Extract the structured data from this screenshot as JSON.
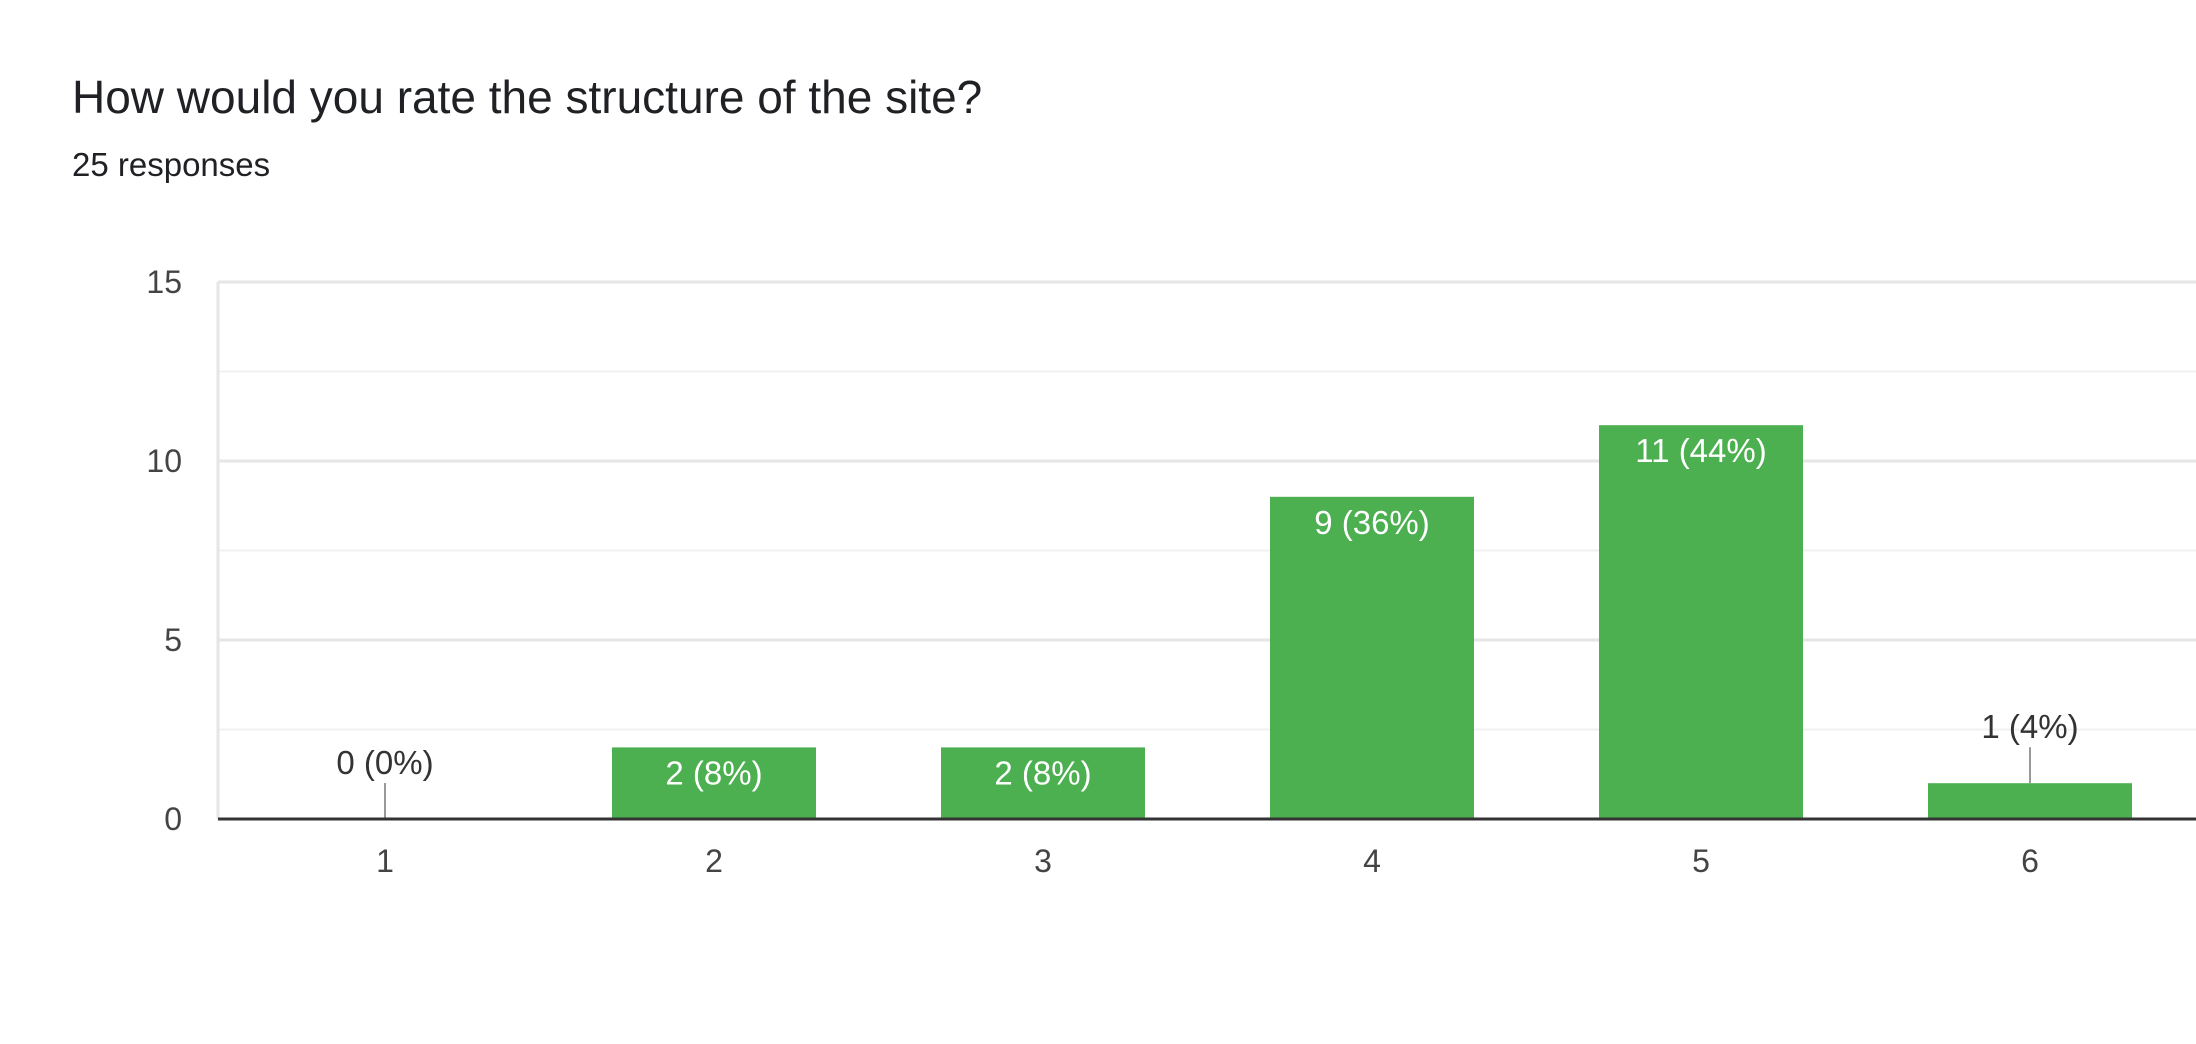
{
  "title": "How would you rate the structure of the site?",
  "subtitle": "25 responses",
  "colors": {
    "bar": "#4caf50",
    "grid": "#e6e6e6",
    "axis": "#333333",
    "inside_label": "#ffffff",
    "outside_label": "#333333"
  },
  "chart_data": {
    "type": "bar",
    "categories": [
      "1",
      "2",
      "3",
      "4",
      "5",
      "6"
    ],
    "values": [
      0,
      2,
      2,
      9,
      11,
      1
    ],
    "labels": [
      "0 (0%)",
      "2 (8%)",
      "2 (8%)",
      "9 (36%)",
      "11 (44%)",
      "1 (4%)"
    ],
    "yticks": [
      0,
      5,
      10,
      15
    ],
    "ylim": [
      0,
      15
    ],
    "grid": true
  }
}
